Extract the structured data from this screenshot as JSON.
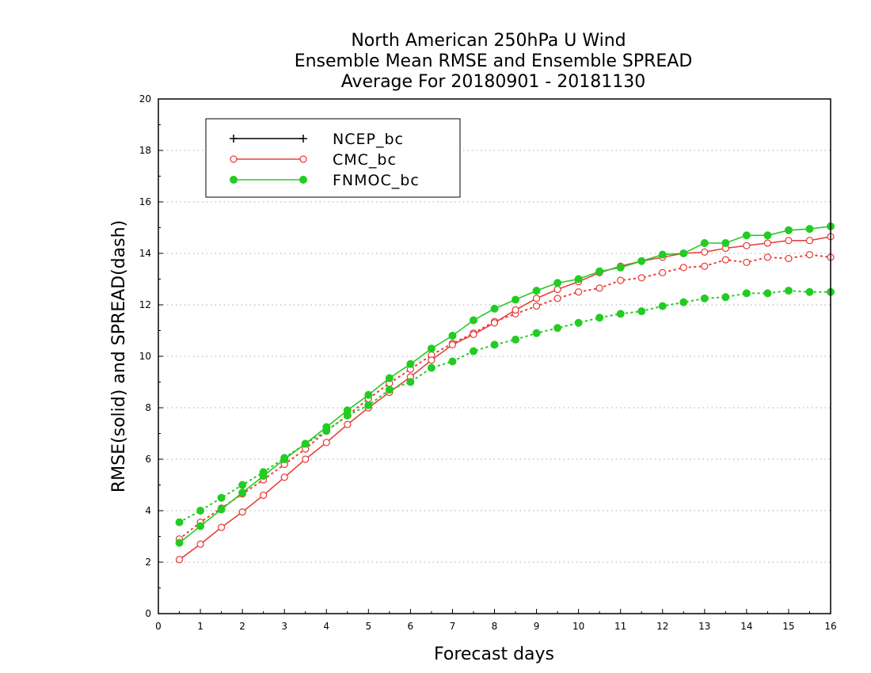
{
  "chart_data": {
    "type": "line",
    "title": [
      "North American 250hPa U Wind",
      "Ensemble Mean RMSE and Ensemble SPREAD",
      "Average For 20180901 - 20181130"
    ],
    "xlabel": "Forecast days",
    "ylabel": "RMSE(solid) and SPREAD(dash)",
    "xlim": [
      0,
      16
    ],
    "ylim": [
      0,
      20
    ],
    "xticks": [
      0,
      1,
      2,
      3,
      4,
      5,
      6,
      7,
      8,
      9,
      10,
      11,
      12,
      13,
      14,
      15,
      16
    ],
    "yticks": [
      0,
      2,
      4,
      6,
      8,
      10,
      12,
      14,
      16,
      18,
      20
    ],
    "grid": "horizontal-dotted",
    "legend_position": "top-left",
    "x": [
      0.5,
      1,
      1.5,
      2,
      2.5,
      3,
      3.5,
      4,
      4.5,
      5,
      5.5,
      6,
      6.5,
      7,
      7.5,
      8,
      8.5,
      9,
      9.5,
      10,
      10.5,
      11,
      11.5,
      12,
      12.5,
      13,
      13.5,
      14,
      14.5,
      15,
      15.5,
      16
    ],
    "series": [
      {
        "name": "NCEP_bc",
        "color": "#000000",
        "marker": "plus",
        "rmse": [],
        "spread": []
      },
      {
        "name": "CMC_bc",
        "color": "#e8403c",
        "marker": "open-circle",
        "rmse": [
          2.1,
          2.7,
          3.35,
          3.95,
          4.6,
          5.3,
          6.0,
          6.65,
          7.35,
          8.0,
          8.6,
          9.2,
          9.85,
          10.45,
          10.85,
          11.3,
          11.8,
          12.25,
          12.6,
          12.9,
          13.25,
          13.5,
          13.7,
          13.85,
          14.0,
          14.05,
          14.2,
          14.3,
          14.4,
          14.5,
          14.5,
          14.65
        ],
        "spread": [
          2.9,
          3.55,
          4.1,
          4.65,
          5.2,
          5.8,
          6.4,
          7.1,
          7.7,
          8.35,
          8.95,
          9.5,
          10.05,
          10.5,
          10.9,
          11.35,
          11.65,
          11.95,
          12.25,
          12.5,
          12.65,
          12.95,
          13.05,
          13.25,
          13.45,
          13.5,
          13.75,
          13.65,
          13.85,
          13.8,
          13.95,
          13.85
        ]
      },
      {
        "name": "FNMOC_bc",
        "color": "#22cc22",
        "marker": "filled-circle",
        "rmse": [
          2.75,
          3.4,
          4.05,
          4.7,
          5.35,
          6.0,
          6.6,
          7.25,
          7.9,
          8.5,
          9.15,
          9.7,
          10.3,
          10.8,
          11.4,
          11.85,
          12.2,
          12.55,
          12.85,
          13.0,
          13.3,
          13.45,
          13.7,
          13.95,
          14.0,
          14.4,
          14.4,
          14.7,
          14.7,
          14.9,
          14.95,
          15.05
        ],
        "spread": [
          3.55,
          4.0,
          4.5,
          5.0,
          5.5,
          6.05,
          6.6,
          7.1,
          7.7,
          8.1,
          8.7,
          9.0,
          9.55,
          9.8,
          10.2,
          10.45,
          10.65,
          10.9,
          11.1,
          11.3,
          11.5,
          11.65,
          11.75,
          11.95,
          12.1,
          12.25,
          12.3,
          12.45,
          12.45,
          12.55,
          12.5,
          12.5
        ]
      }
    ]
  }
}
